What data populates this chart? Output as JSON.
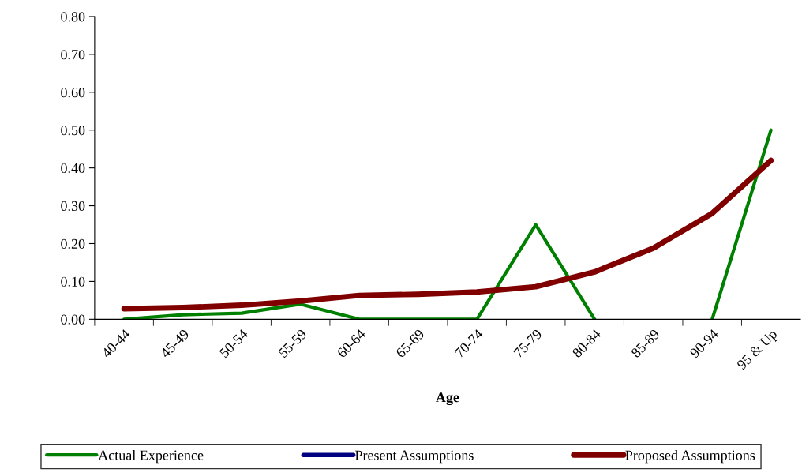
{
  "chart_data": {
    "type": "line",
    "xlabel": "Age",
    "categories": [
      "40-44",
      "45-49",
      "50-54",
      "55-59",
      "60-64",
      "65-69",
      "70-74",
      "75-79",
      "80-84",
      "85-89",
      "90-94",
      "95 & Up"
    ],
    "series": [
      {
        "name": "Actual Experience",
        "color": "#008000",
        "values": [
          0,
          0.012,
          0.016,
          0.04,
          0,
          0,
          0,
          0.25,
          0,
          null,
          0,
          0.5
        ]
      },
      {
        "name": "Present Assumptions",
        "color": "#000080",
        "values": [
          null,
          null,
          null,
          null,
          null,
          null,
          null,
          null,
          null,
          null,
          null,
          null
        ]
      },
      {
        "name": "Proposed Assumptions",
        "color": "#800000",
        "values": [
          0.028,
          0.031,
          0.037,
          0.048,
          0.063,
          0.066,
          0.072,
          0.086,
          0.125,
          0.188,
          0.28,
          0.42
        ]
      }
    ],
    "ylim": [
      0,
      0.8
    ],
    "yticks": [
      {
        "value": 0,
        "label": "0.00"
      },
      {
        "value": 0.1,
        "label": "0.10"
      },
      {
        "value": 0.2,
        "label": "0.20"
      },
      {
        "value": 0.3,
        "label": "0.30"
      },
      {
        "value": 0.4,
        "label": "0.40"
      },
      {
        "value": 0.5,
        "label": "0.50"
      },
      {
        "value": 0.6,
        "label": "0.60"
      },
      {
        "value": 0.7,
        "label": "0.70"
      },
      {
        "value": 0.8,
        "label": "0.80"
      }
    ],
    "grid": false,
    "legend": "bottom",
    "marker": "none",
    "line_style": "solid"
  }
}
